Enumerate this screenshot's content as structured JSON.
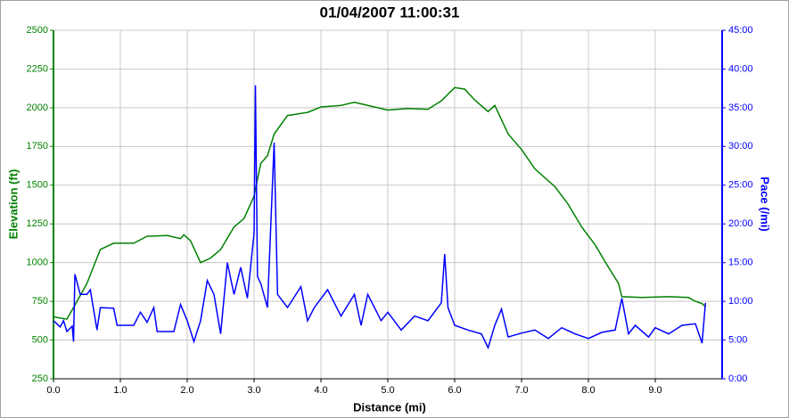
{
  "chart_data": {
    "type": "line",
    "title": "01/04/2007 11:00:31",
    "x_label": "Distance (mi)",
    "y_label": "Elevation (ft)",
    "y2_label": "Pace (/mi)",
    "xlim": [
      0,
      10
    ],
    "ylim": [
      250,
      2500
    ],
    "y2lim": [
      0,
      45
    ],
    "xticks": [
      {
        "value": 0,
        "label": "0.0"
      },
      {
        "value": 1,
        "label": "1.0"
      },
      {
        "value": 2,
        "label": "2.0"
      },
      {
        "value": 3,
        "label": "3.0"
      },
      {
        "value": 4,
        "label": "4.0"
      },
      {
        "value": 5,
        "label": "5.0"
      },
      {
        "value": 6,
        "label": "6.0"
      },
      {
        "value": 7,
        "label": "7.0"
      },
      {
        "value": 8,
        "label": "8.0"
      },
      {
        "value": 9,
        "label": "9.0"
      }
    ],
    "yticks": [
      250,
      500,
      750,
      1000,
      1250,
      1500,
      1750,
      2000,
      2250,
      2500
    ],
    "y2ticks": [
      {
        "value": 0,
        "label": "0:00"
      },
      {
        "value": 5,
        "label": "5:00"
      },
      {
        "value": 10,
        "label": "10:00"
      },
      {
        "value": 15,
        "label": "15:00"
      },
      {
        "value": 20,
        "label": "20:00"
      },
      {
        "value": 25,
        "label": "25:00"
      },
      {
        "value": 30,
        "label": "30:00"
      },
      {
        "value": 35,
        "label": "35:00"
      },
      {
        "value": 40,
        "label": "40:00"
      },
      {
        "value": 45,
        "label": "45:00"
      }
    ],
    "grid": true,
    "series": [
      {
        "name": "Elevation",
        "color": "#008000",
        "x": [
          0,
          0.2,
          0.3,
          0.5,
          0.7,
          0.9,
          1.2,
          1.4,
          1.7,
          1.9,
          1.95,
          2.05,
          2.2,
          2.35,
          2.5,
          2.7,
          2.85,
          3.0,
          3.1,
          3.2,
          3.3,
          3.5,
          3.8,
          4.0,
          4.3,
          4.5,
          4.8,
          5.0,
          5.3,
          5.6,
          5.8,
          6.0,
          6.15,
          6.3,
          6.5,
          6.6,
          6.8,
          7.0,
          7.2,
          7.5,
          7.7,
          7.9,
          8.1,
          8.3,
          8.45,
          8.5,
          8.8,
          9.2,
          9.5,
          9.6,
          9.7,
          9.75
        ],
        "values": [
          650,
          635,
          710,
          865,
          1085,
          1125,
          1125,
          1170,
          1175,
          1155,
          1180,
          1140,
          1000,
          1030,
          1085,
          1230,
          1285,
          1430,
          1640,
          1690,
          1830,
          1950,
          1970,
          2005,
          2015,
          2035,
          2005,
          1985,
          1995,
          1990,
          2045,
          2130,
          2120,
          2050,
          1975,
          2015,
          1830,
          1730,
          1605,
          1490,
          1375,
          1230,
          1115,
          970,
          865,
          780,
          775,
          780,
          775,
          750,
          735,
          715
        ]
      },
      {
        "name": "Pace",
        "color": "#0000ff",
        "axis": "y2",
        "x": [
          0,
          0.1,
          0.15,
          0.2,
          0.28,
          0.3,
          0.32,
          0.4,
          0.5,
          0.55,
          0.65,
          0.7,
          0.9,
          0.95,
          1.2,
          1.3,
          1.4,
          1.5,
          1.55,
          1.8,
          1.9,
          2.0,
          2.1,
          2.2,
          2.3,
          2.4,
          2.5,
          2.6,
          2.7,
          2.8,
          2.9,
          3.0,
          3.02,
          3.05,
          3.1,
          3.2,
          3.3,
          3.35,
          3.5,
          3.7,
          3.8,
          3.9,
          4.1,
          4.3,
          4.5,
          4.6,
          4.7,
          4.9,
          5.0,
          5.2,
          5.4,
          5.6,
          5.8,
          5.85,
          5.9,
          6.0,
          6.2,
          6.4,
          6.5,
          6.6,
          6.7,
          6.8,
          7.0,
          7.2,
          7.4,
          7.6,
          7.8,
          8.0,
          8.2,
          8.4,
          8.5,
          8.6,
          8.7,
          8.9,
          9.0,
          9.2,
          9.4,
          9.6,
          9.7,
          9.75
        ],
        "values": [
          7.5,
          6.7,
          7.5,
          6.1,
          6.8,
          4.8,
          13.5,
          10.9,
          10.9,
          11.5,
          6.3,
          9.2,
          9.1,
          6.9,
          6.9,
          8.6,
          7.3,
          9.2,
          6.1,
          6.1,
          9.6,
          7.5,
          4.8,
          7.5,
          12.7,
          10.9,
          5.8,
          15.0,
          10.9,
          14.4,
          10.4,
          18.8,
          37.9,
          13.2,
          12.3,
          9.2,
          30.5,
          10.9,
          9.2,
          11.9,
          7.5,
          9.2,
          11.5,
          8.1,
          10.9,
          6.9,
          10.9,
          7.5,
          8.6,
          6.3,
          8.1,
          7.5,
          9.8,
          16.1,
          9.2,
          6.9,
          6.3,
          5.8,
          4.0,
          6.9,
          9.0,
          5.4,
          5.9,
          6.3,
          5.2,
          6.6,
          5.8,
          5.2,
          6.0,
          6.3,
          10.4,
          5.8,
          6.9,
          5.4,
          6.6,
          5.8,
          6.9,
          7.1,
          4.6,
          9.8
        ]
      }
    ]
  }
}
